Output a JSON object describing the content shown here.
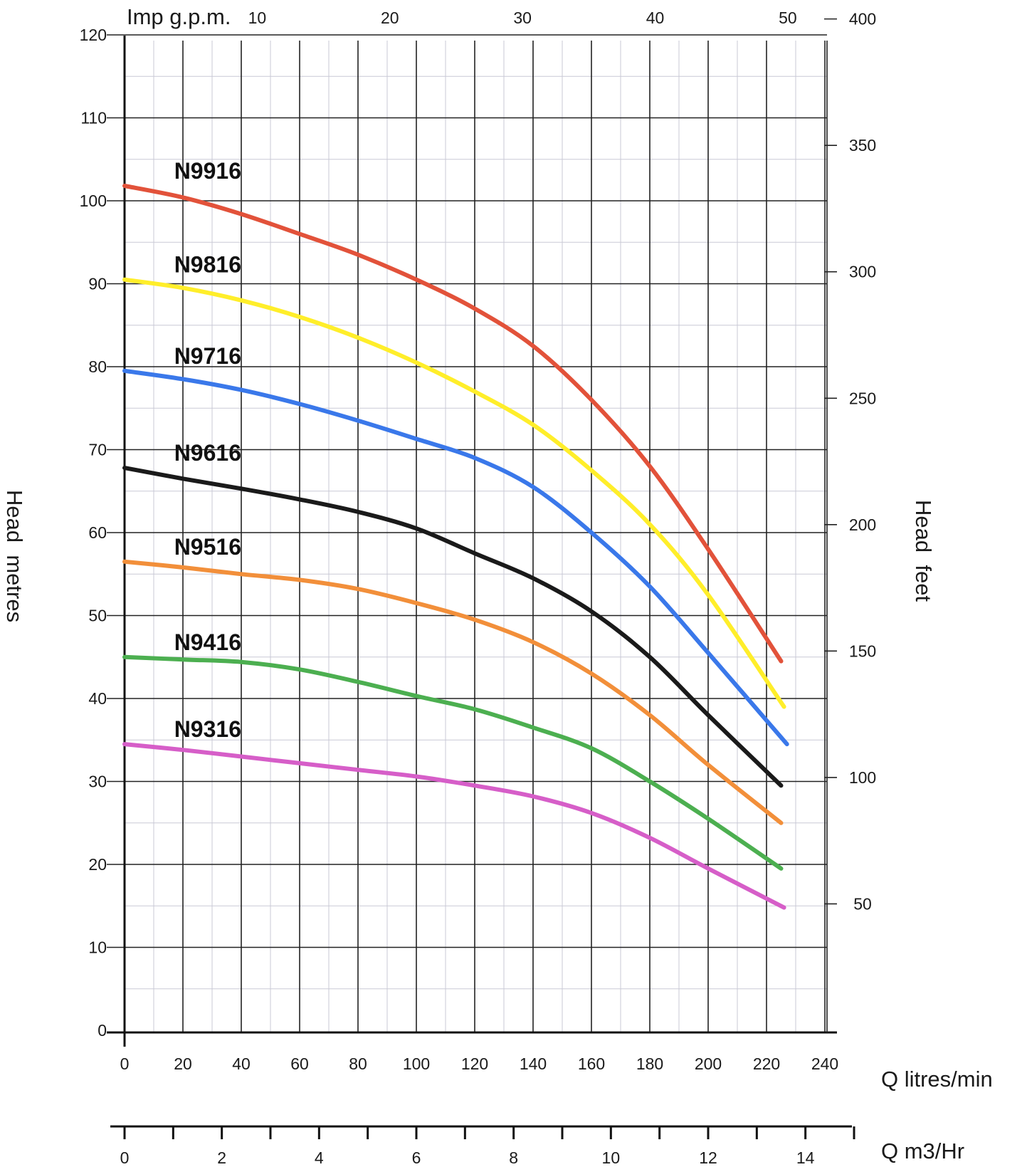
{
  "chart_data": {
    "type": "line",
    "x_axis_bottom": {
      "label": "Q litres/min",
      "ticks": [
        0,
        20,
        40,
        60,
        80,
        100,
        120,
        140,
        160,
        180,
        200,
        220,
        240
      ],
      "range": [
        0,
        240
      ]
    },
    "x_axis_m3": {
      "label": "Q m3/Hr",
      "ticks": [
        0,
        2,
        4,
        6,
        8,
        10,
        12,
        14
      ],
      "range": [
        0,
        15
      ]
    },
    "x_axis_top": {
      "label": "Imp g.p.m.",
      "ticks": [
        10,
        20,
        30,
        40,
        50
      ]
    },
    "y_axis_left": {
      "label": "Head  metres",
      "ticks": [
        0,
        10,
        20,
        30,
        40,
        50,
        60,
        70,
        80,
        90,
        100,
        110,
        120
      ],
      "range": [
        0,
        120
      ]
    },
    "y_axis_right": {
      "label": "Head  feet",
      "ticks": [
        50,
        100,
        150,
        200,
        250,
        300,
        350,
        400
      ]
    },
    "grid": true,
    "series": [
      {
        "name": "N9916",
        "color": "#e2523a",
        "x": [
          0,
          20,
          40,
          60,
          80,
          100,
          120,
          140,
          160,
          180,
          200,
          225
        ],
        "y": [
          101.8,
          100.4,
          98.4,
          96,
          93.5,
          90.5,
          87,
          82.5,
          76,
          68,
          58,
          44.5
        ]
      },
      {
        "name": "N9816",
        "color": "#ffee2a",
        "x": [
          0,
          20,
          40,
          60,
          80,
          100,
          120,
          140,
          160,
          180,
          200,
          226
        ],
        "y": [
          90.5,
          89.5,
          88,
          86,
          83.5,
          80.5,
          77,
          73,
          67.5,
          61,
          52.5,
          39
        ]
      },
      {
        "name": "N9716",
        "color": "#3a78ea",
        "x": [
          0,
          20,
          40,
          60,
          80,
          100,
          120,
          140,
          160,
          180,
          200,
          227
        ],
        "y": [
          79.5,
          78.5,
          77.2,
          75.5,
          73.5,
          71.3,
          69,
          65.5,
          60,
          53.5,
          45.5,
          34.5
        ]
      },
      {
        "name": "N9616",
        "color": "#1a1a1a",
        "x": [
          0,
          20,
          40,
          60,
          80,
          100,
          120,
          140,
          160,
          180,
          200,
          225
        ],
        "y": [
          67.8,
          66.5,
          65.3,
          64,
          62.5,
          60.5,
          57.5,
          54.5,
          50.5,
          45,
          38,
          29.5
        ]
      },
      {
        "name": "N9516",
        "color": "#f28f3a",
        "x": [
          0,
          20,
          40,
          60,
          80,
          100,
          120,
          140,
          160,
          180,
          200,
          225
        ],
        "y": [
          56.5,
          55.8,
          55,
          54.3,
          53.2,
          51.5,
          49.5,
          46.8,
          43,
          38,
          32,
          25
        ]
      },
      {
        "name": "N9416",
        "color": "#4caf50",
        "x": [
          0,
          20,
          40,
          60,
          80,
          100,
          120,
          140,
          160,
          180,
          200,
          225
        ],
        "y": [
          45,
          44.7,
          44.4,
          43.5,
          42,
          40.3,
          38.7,
          36.5,
          34,
          30,
          25.5,
          19.5
        ]
      },
      {
        "name": "N9316",
        "color": "#d65ec8",
        "x": [
          0,
          20,
          40,
          60,
          80,
          100,
          120,
          140,
          160,
          180,
          200,
          226
        ],
        "y": [
          34.5,
          33.8,
          33,
          32.2,
          31.4,
          30.6,
          29.5,
          28.2,
          26.2,
          23.2,
          19.5,
          14.8
        ]
      }
    ]
  }
}
